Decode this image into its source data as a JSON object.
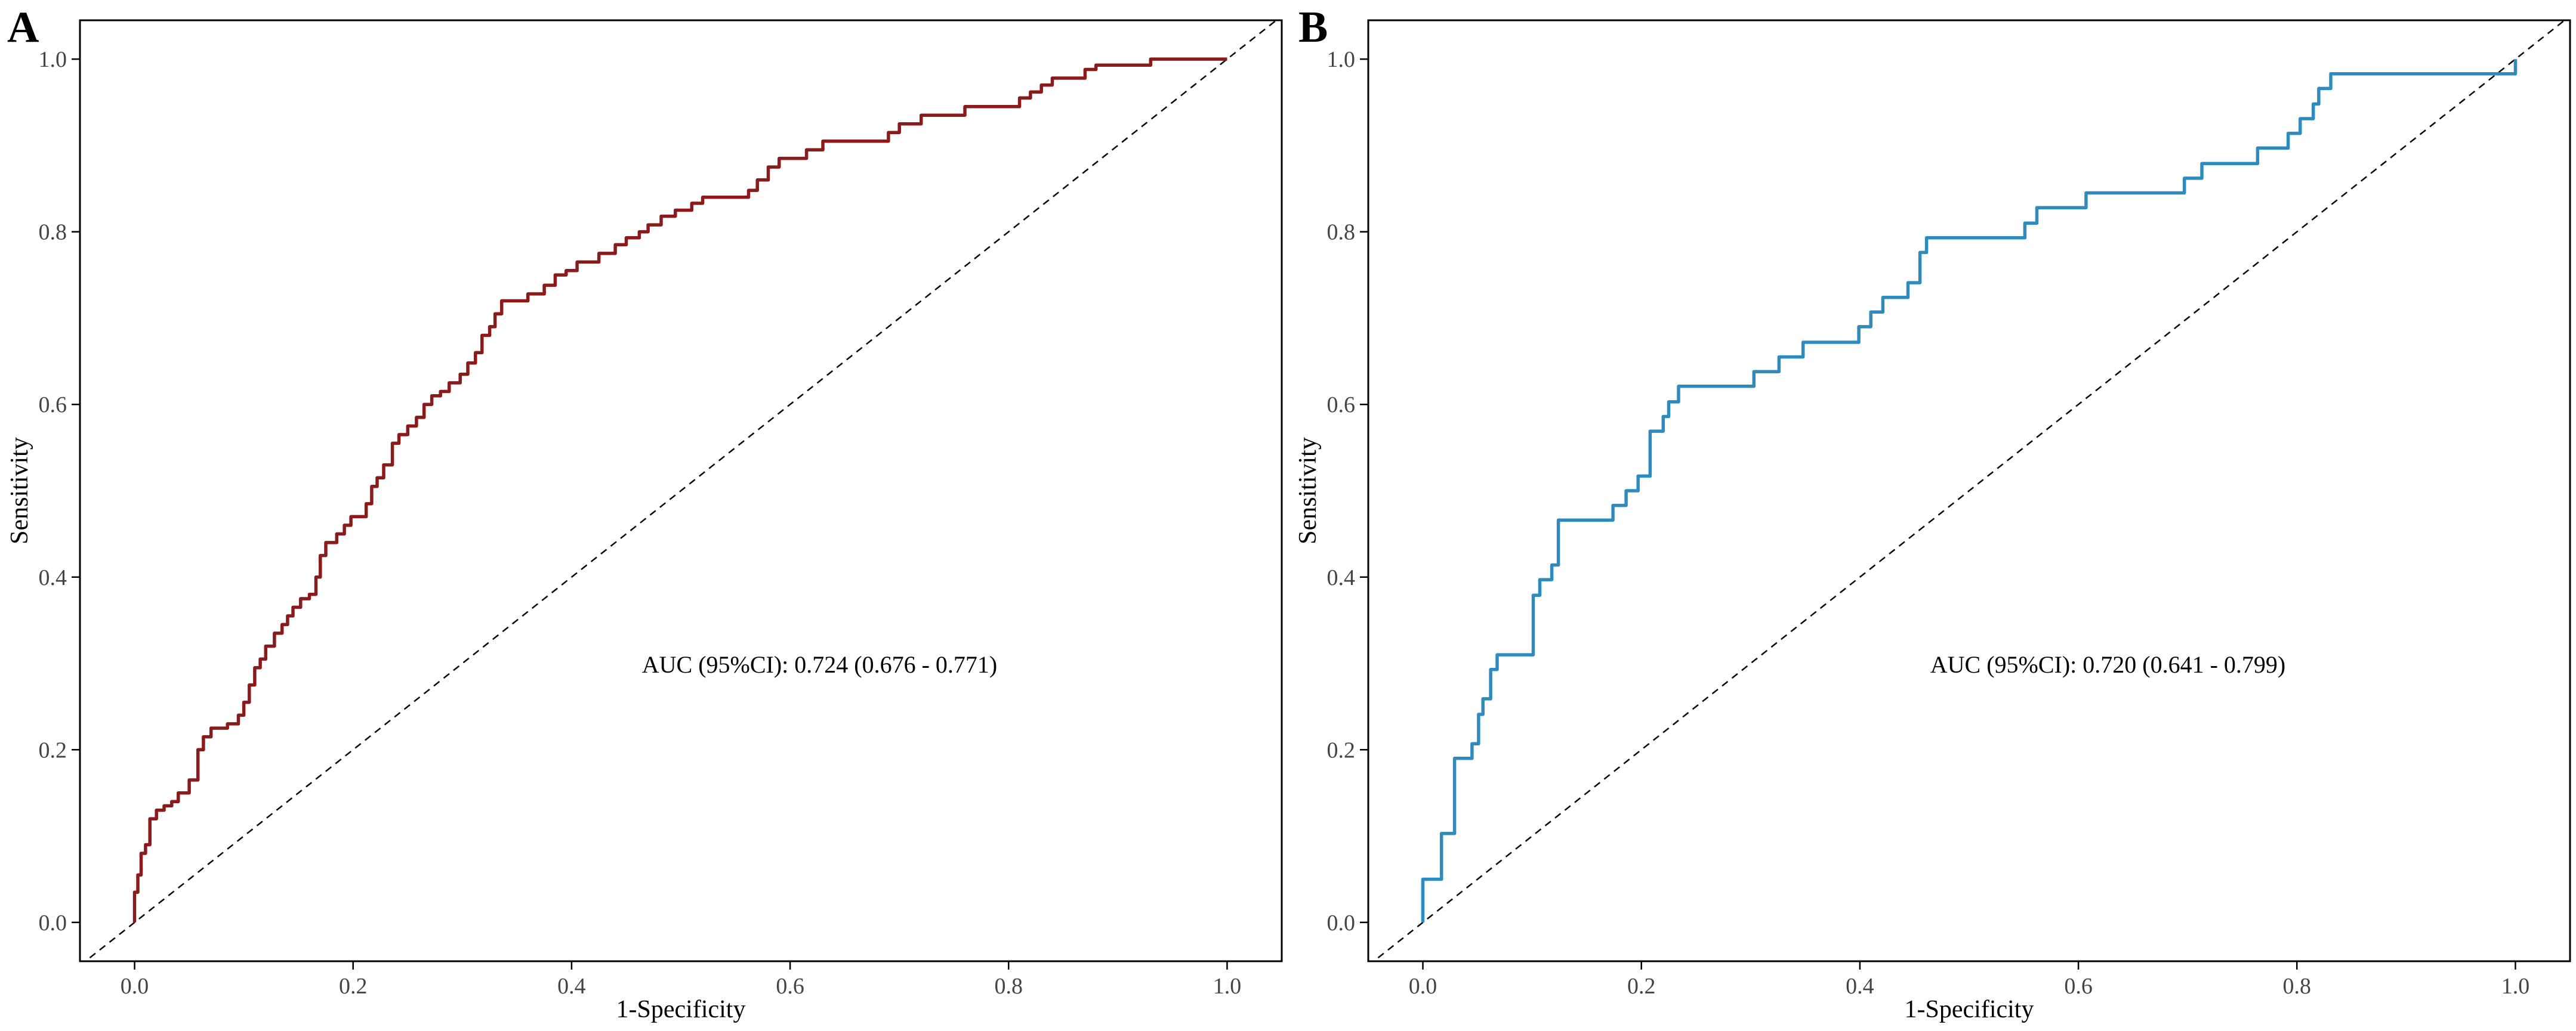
{
  "chart_data": [
    {
      "type": "line",
      "panel_label": "A",
      "xlabel": "1-Specificity",
      "ylabel": "Sensitivity",
      "xlim": [
        -0.05,
        1.05
      ],
      "ylim": [
        -0.045,
        1.045
      ],
      "x_ticks": [
        "0.0",
        "0.2",
        "0.4",
        "0.6",
        "0.8",
        "1.0"
      ],
      "y_ticks": [
        "0.0",
        "0.2",
        "0.4",
        "0.6",
        "0.8",
        "1.0"
      ],
      "annotation": "AUC (95%CI): 0.724 (0.676 - 0.771)",
      "annotation_at": [
        0.627,
        0.299
      ],
      "color": "#8B1A1A",
      "series": [
        {
          "name": "ROC",
          "points": [
            [
              0,
              0
            ],
            [
              0,
              0.035
            ],
            [
              0.003,
              0.035
            ],
            [
              0.003,
              0.055
            ],
            [
              0.006,
              0.055
            ],
            [
              0.006,
              0.08
            ],
            [
              0.01,
              0.08
            ],
            [
              0.01,
              0.09
            ],
            [
              0.014,
              0.09
            ],
            [
              0.014,
              0.12
            ],
            [
              0.02,
              0.12
            ],
            [
              0.02,
              0.13
            ],
            [
              0.027,
              0.13
            ],
            [
              0.027,
              0.135
            ],
            [
              0.034,
              0.135
            ],
            [
              0.034,
              0.14
            ],
            [
              0.04,
              0.14
            ],
            [
              0.04,
              0.15
            ],
            [
              0.05,
              0.15
            ],
            [
              0.05,
              0.165
            ],
            [
              0.058,
              0.165
            ],
            [
              0.058,
              0.2
            ],
            [
              0.063,
              0.2
            ],
            [
              0.063,
              0.215
            ],
            [
              0.07,
              0.215
            ],
            [
              0.07,
              0.225
            ],
            [
              0.085,
              0.225
            ],
            [
              0.085,
              0.23
            ],
            [
              0.095,
              0.23
            ],
            [
              0.095,
              0.24
            ],
            [
              0.1,
              0.24
            ],
            [
              0.1,
              0.255
            ],
            [
              0.105,
              0.255
            ],
            [
              0.105,
              0.275
            ],
            [
              0.11,
              0.275
            ],
            [
              0.11,
              0.295
            ],
            [
              0.115,
              0.295
            ],
            [
              0.115,
              0.305
            ],
            [
              0.12,
              0.305
            ],
            [
              0.12,
              0.32
            ],
            [
              0.128,
              0.32
            ],
            [
              0.128,
              0.335
            ],
            [
              0.135,
              0.335
            ],
            [
              0.135,
              0.345
            ],
            [
              0.14,
              0.345
            ],
            [
              0.14,
              0.355
            ],
            [
              0.145,
              0.355
            ],
            [
              0.145,
              0.365
            ],
            [
              0.152,
              0.365
            ],
            [
              0.152,
              0.375
            ],
            [
              0.16,
              0.375
            ],
            [
              0.16,
              0.38
            ],
            [
              0.166,
              0.38
            ],
            [
              0.166,
              0.4
            ],
            [
              0.17,
              0.4
            ],
            [
              0.17,
              0.425
            ],
            [
              0.175,
              0.425
            ],
            [
              0.175,
              0.44
            ],
            [
              0.185,
              0.44
            ],
            [
              0.185,
              0.45
            ],
            [
              0.192,
              0.45
            ],
            [
              0.192,
              0.46
            ],
            [
              0.198,
              0.46
            ],
            [
              0.198,
              0.47
            ],
            [
              0.212,
              0.47
            ],
            [
              0.212,
              0.485
            ],
            [
              0.217,
              0.485
            ],
            [
              0.217,
              0.505
            ],
            [
              0.222,
              0.505
            ],
            [
              0.222,
              0.515
            ],
            [
              0.228,
              0.515
            ],
            [
              0.228,
              0.53
            ],
            [
              0.236,
              0.53
            ],
            [
              0.236,
              0.555
            ],
            [
              0.242,
              0.555
            ],
            [
              0.242,
              0.565
            ],
            [
              0.25,
              0.565
            ],
            [
              0.25,
              0.575
            ],
            [
              0.258,
              0.575
            ],
            [
              0.258,
              0.585
            ],
            [
              0.265,
              0.585
            ],
            [
              0.265,
              0.6
            ],
            [
              0.272,
              0.6
            ],
            [
              0.272,
              0.61
            ],
            [
              0.28,
              0.61
            ],
            [
              0.28,
              0.615
            ],
            [
              0.288,
              0.615
            ],
            [
              0.288,
              0.625
            ],
            [
              0.298,
              0.625
            ],
            [
              0.298,
              0.635
            ],
            [
              0.305,
              0.635
            ],
            [
              0.305,
              0.648
            ],
            [
              0.312,
              0.648
            ],
            [
              0.312,
              0.66
            ],
            [
              0.318,
              0.66
            ],
            [
              0.318,
              0.68
            ],
            [
              0.325,
              0.68
            ],
            [
              0.325,
              0.69
            ],
            [
              0.33,
              0.69
            ],
            [
              0.33,
              0.705
            ],
            [
              0.336,
              0.705
            ],
            [
              0.336,
              0.72
            ],
            [
              0.36,
              0.72
            ],
            [
              0.36,
              0.728
            ],
            [
              0.375,
              0.728
            ],
            [
              0.375,
              0.738
            ],
            [
              0.385,
              0.738
            ],
            [
              0.385,
              0.75
            ],
            [
              0.395,
              0.75
            ],
            [
              0.395,
              0.755
            ],
            [
              0.405,
              0.755
            ],
            [
              0.405,
              0.765
            ],
            [
              0.425,
              0.765
            ],
            [
              0.425,
              0.775
            ],
            [
              0.44,
              0.775
            ],
            [
              0.44,
              0.785
            ],
            [
              0.45,
              0.785
            ],
            [
              0.45,
              0.793
            ],
            [
              0.462,
              0.793
            ],
            [
              0.462,
              0.8
            ],
            [
              0.47,
              0.8
            ],
            [
              0.47,
              0.808
            ],
            [
              0.482,
              0.808
            ],
            [
              0.482,
              0.818
            ],
            [
              0.495,
              0.818
            ],
            [
              0.495,
              0.825
            ],
            [
              0.51,
              0.825
            ],
            [
              0.51,
              0.833
            ],
            [
              0.52,
              0.833
            ],
            [
              0.52,
              0.84
            ],
            [
              0.562,
              0.84
            ],
            [
              0.562,
              0.848
            ],
            [
              0.57,
              0.848
            ],
            [
              0.57,
              0.86
            ],
            [
              0.58,
              0.86
            ],
            [
              0.58,
              0.875
            ],
            [
              0.59,
              0.875
            ],
            [
              0.59,
              0.885
            ],
            [
              0.615,
              0.885
            ],
            [
              0.615,
              0.895
            ],
            [
              0.63,
              0.895
            ],
            [
              0.63,
              0.905
            ],
            [
              0.69,
              0.905
            ],
            [
              0.69,
              0.915
            ],
            [
              0.7,
              0.915
            ],
            [
              0.7,
              0.925
            ],
            [
              0.72,
              0.925
            ],
            [
              0.72,
              0.935
            ],
            [
              0.76,
              0.935
            ],
            [
              0.76,
              0.945
            ],
            [
              0.81,
              0.945
            ],
            [
              0.81,
              0.955
            ],
            [
              0.82,
              0.955
            ],
            [
              0.82,
              0.962
            ],
            [
              0.83,
              0.962
            ],
            [
              0.83,
              0.97
            ],
            [
              0.84,
              0.97
            ],
            [
              0.84,
              0.978
            ],
            [
              0.87,
              0.978
            ],
            [
              0.87,
              0.988
            ],
            [
              0.88,
              0.988
            ],
            [
              0.88,
              0.993
            ],
            [
              0.93,
              0.993
            ],
            [
              0.93,
              1
            ],
            [
              1,
              1
            ]
          ]
        },
        {
          "name": "reference",
          "points": [
            [
              -0.05,
              -0.05
            ],
            [
              1.05,
              1.05
            ]
          ]
        }
      ]
    },
    {
      "type": "line",
      "panel_label": "B",
      "xlabel": "1-Specificity",
      "ylabel": "Sensitivity",
      "xlim": [
        -0.05,
        1.05
      ],
      "ylim": [
        -0.045,
        1.045
      ],
      "x_ticks": [
        "0.0",
        "0.2",
        "0.4",
        "0.6",
        "0.8",
        "1.0"
      ],
      "y_ticks": [
        "0.0",
        "0.2",
        "0.4",
        "0.6",
        "0.8",
        "1.0"
      ],
      "annotation": "AUC (95%CI): 0.720 (0.641 - 0.799)",
      "annotation_at": [
        0.627,
        0.299
      ],
      "color": "#2E8BC0",
      "series": [
        {
          "name": "ROC",
          "points": [
            [
              0,
              0
            ],
            [
              0,
              0.05
            ],
            [
              0.017,
              0.05
            ],
            [
              0.017,
              0.103
            ],
            [
              0.029,
              0.103
            ],
            [
              0.029,
              0.19
            ],
            [
              0.045,
              0.19
            ],
            [
              0.045,
              0.207
            ],
            [
              0.051,
              0.207
            ],
            [
              0.051,
              0.241
            ],
            [
              0.055,
              0.241
            ],
            [
              0.055,
              0.259
            ],
            [
              0.062,
              0.259
            ],
            [
              0.062,
              0.293
            ],
            [
              0.068,
              0.293
            ],
            [
              0.068,
              0.31
            ],
            [
              0.101,
              0.31
            ],
            [
              0.101,
              0.379
            ],
            [
              0.107,
              0.379
            ],
            [
              0.107,
              0.397
            ],
            [
              0.118,
              0.397
            ],
            [
              0.118,
              0.414
            ],
            [
              0.124,
              0.414
            ],
            [
              0.124,
              0.466
            ],
            [
              0.174,
              0.466
            ],
            [
              0.174,
              0.483
            ],
            [
              0.186,
              0.483
            ],
            [
              0.186,
              0.5
            ],
            [
              0.197,
              0.5
            ],
            [
              0.197,
              0.517
            ],
            [
              0.208,
              0.517
            ],
            [
              0.208,
              0.569
            ],
            [
              0.22,
              0.569
            ],
            [
              0.22,
              0.586
            ],
            [
              0.225,
              0.586
            ],
            [
              0.225,
              0.603
            ],
            [
              0.234,
              0.603
            ],
            [
              0.234,
              0.621
            ],
            [
              0.303,
              0.621
            ],
            [
              0.303,
              0.638
            ],
            [
              0.326,
              0.638
            ],
            [
              0.326,
              0.655
            ],
            [
              0.348,
              0.655
            ],
            [
              0.348,
              0.672
            ],
            [
              0.399,
              0.672
            ],
            [
              0.399,
              0.69
            ],
            [
              0.41,
              0.69
            ],
            [
              0.41,
              0.707
            ],
            [
              0.421,
              0.707
            ],
            [
              0.421,
              0.724
            ],
            [
              0.444,
              0.724
            ],
            [
              0.444,
              0.741
            ],
            [
              0.455,
              0.741
            ],
            [
              0.455,
              0.776
            ],
            [
              0.461,
              0.776
            ],
            [
              0.461,
              0.793
            ],
            [
              0.551,
              0.793
            ],
            [
              0.551,
              0.81
            ],
            [
              0.562,
              0.81
            ],
            [
              0.562,
              0.828
            ],
            [
              0.607,
              0.828
            ],
            [
              0.607,
              0.845
            ],
            [
              0.697,
              0.845
            ],
            [
              0.697,
              0.862
            ],
            [
              0.713,
              0.862
            ],
            [
              0.713,
              0.879
            ],
            [
              0.764,
              0.879
            ],
            [
              0.764,
              0.897
            ],
            [
              0.792,
              0.897
            ],
            [
              0.792,
              0.914
            ],
            [
              0.803,
              0.914
            ],
            [
              0.803,
              0.931
            ],
            [
              0.815,
              0.931
            ],
            [
              0.815,
              0.948
            ],
            [
              0.82,
              0.948
            ],
            [
              0.82,
              0.966
            ],
            [
              0.831,
              0.966
            ],
            [
              0.831,
              0.983
            ],
            [
              0.994,
              0.983
            ],
            [
              0.994,
              0.983
            ],
            [
              1,
              0.983
            ],
            [
              1,
              1
            ]
          ]
        },
        {
          "name": "reference",
          "points": [
            [
              -0.05,
              -0.05
            ],
            [
              1.05,
              1.05
            ]
          ]
        }
      ]
    }
  ]
}
